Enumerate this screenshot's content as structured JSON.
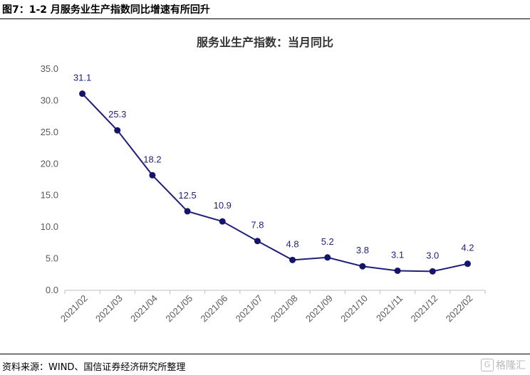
{
  "figure_title": "图7：1-2 月服务业生产指数同比增速有所回升",
  "source": "资料来源：WIND、国信证券经济研究所整理",
  "watermark": "格隆汇",
  "colors": {
    "line": "#1f1f7a",
    "marker": "#14146b",
    "axis": "#bfbfbf"
  },
  "chart_data": {
    "type": "line",
    "title": "服务业生产指数：当月同比",
    "xlabel": "",
    "ylabel": "",
    "categories": [
      "2021/02",
      "2021/03",
      "2021/04",
      "2021/05",
      "2021/06",
      "2021/07",
      "2021/08",
      "2021/09",
      "2021/10",
      "2021/11",
      "2021/12",
      "2022/02"
    ],
    "series": [
      {
        "values": [
          31.1,
          25.3,
          18.2,
          12.5,
          10.9,
          7.8,
          4.8,
          5.2,
          3.8,
          3.1,
          3.0,
          4.2
        ]
      }
    ],
    "ylim": [
      0,
      35
    ],
    "yticks": [
      "0.0",
      "5.0",
      "10.0",
      "15.0",
      "20.0",
      "25.0",
      "30.0",
      "35.0"
    ],
    "data_labels": [
      "31.1",
      "25.3",
      "18.2",
      "12.5",
      "10.9",
      "7.8",
      "4.8",
      "5.2",
      "3.8",
      "3.1",
      "3.0",
      "4.2"
    ],
    "grid": false,
    "legend": "none"
  }
}
